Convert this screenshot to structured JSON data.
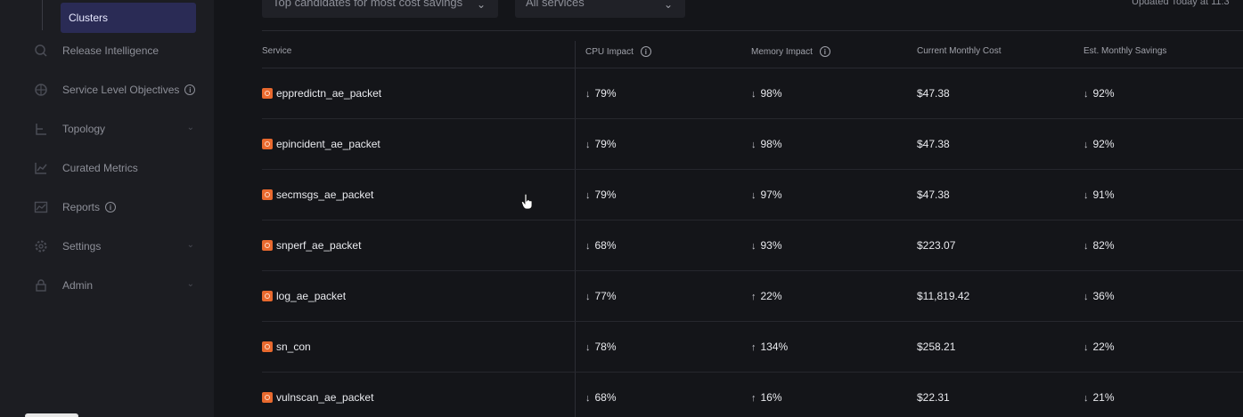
{
  "sidebar": {
    "active_item": "Clusters",
    "items": [
      {
        "label": "Release Intelligence",
        "icon": "release-icon",
        "info": false,
        "chevron": false
      },
      {
        "label": "Service Level Objectives",
        "icon": "target-icon",
        "info": true,
        "chevron": false
      },
      {
        "label": "Topology",
        "icon": "topology-icon",
        "info": false,
        "chevron": true
      },
      {
        "label": "Curated Metrics",
        "icon": "line-chart-icon",
        "info": false,
        "chevron": false
      },
      {
        "label": "Reports",
        "icon": "report-chart-icon",
        "info": true,
        "chevron": false
      },
      {
        "label": "Settings",
        "icon": "gear-icon",
        "info": false,
        "chevron": true
      },
      {
        "label": "Admin",
        "icon": "lock-icon",
        "info": false,
        "chevron": true
      }
    ]
  },
  "filters": {
    "sort_label": "Top candidates for most cost savings",
    "service_label": "All services"
  },
  "updated_text": "Updated Today at 11:3",
  "table": {
    "columns": {
      "service": "Service",
      "cpu": "CPU Impact",
      "memory": "Memory Impact",
      "cost": "Current Monthly Cost",
      "savings": "Est. Monthly Savings"
    },
    "rows": [
      {
        "service": "eppredictn_ae_packet",
        "cpu_dir": "down",
        "cpu": "79%",
        "mem_dir": "down",
        "mem": "98%",
        "cost": "$47.38",
        "sav_dir": "down",
        "savings": "92%"
      },
      {
        "service": "epincident_ae_packet",
        "cpu_dir": "down",
        "cpu": "79%",
        "mem_dir": "down",
        "mem": "98%",
        "cost": "$47.38",
        "sav_dir": "down",
        "savings": "92%"
      },
      {
        "service": "secmsgs_ae_packet",
        "cpu_dir": "down",
        "cpu": "79%",
        "mem_dir": "down",
        "mem": "97%",
        "cost": "$47.38",
        "sav_dir": "down",
        "savings": "91%"
      },
      {
        "service": "snperf_ae_packet",
        "cpu_dir": "down",
        "cpu": "68%",
        "mem_dir": "down",
        "mem": "93%",
        "cost": "$223.07",
        "sav_dir": "down",
        "savings": "82%"
      },
      {
        "service": "log_ae_packet",
        "cpu_dir": "down",
        "cpu": "77%",
        "mem_dir": "up",
        "mem": "22%",
        "cost": "$11,819.42",
        "sav_dir": "down",
        "savings": "36%"
      },
      {
        "service": "sn_con",
        "cpu_dir": "down",
        "cpu": "78%",
        "mem_dir": "up",
        "mem": "134%",
        "cost": "$258.21",
        "sav_dir": "down",
        "savings": "22%"
      },
      {
        "service": "vulnscan_ae_packet",
        "cpu_dir": "down",
        "cpu": "68%",
        "mem_dir": "up",
        "mem": "16%",
        "cost": "$22.31",
        "sav_dir": "down",
        "savings": "21%"
      }
    ]
  },
  "colors": {
    "background": "#141519",
    "sidebar": "#1c1d22",
    "active_nav": "#2a2b55",
    "service_icon": "#e8692e"
  }
}
